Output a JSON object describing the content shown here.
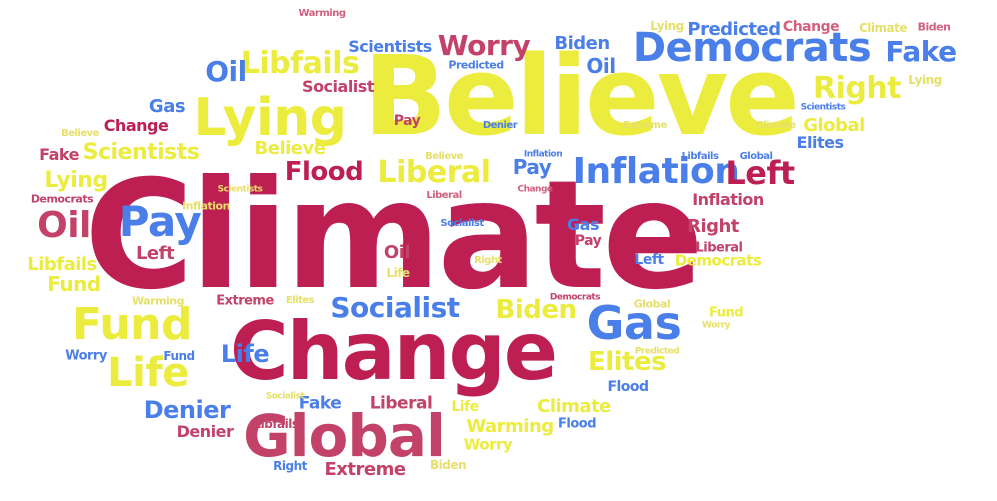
{
  "colors": {
    "yellow": "#ecec3f",
    "crimson": "#bd1f52",
    "rose": "#c2426a",
    "blue": "#4a7ee8"
  },
  "words": [
    "Climate",
    "Believe",
    "Change",
    "Global",
    "Democrats",
    "Lying",
    "Fund",
    "Gas",
    "Inflation",
    "Left",
    "Liberal",
    "Socialist",
    "Pay",
    "Oil",
    "Life",
    "Flood",
    "Libfails",
    "Worry",
    "Fake",
    "Right",
    "Biden",
    "Elites",
    "Denier",
    "Extreme",
    "Scientists",
    "Predicted",
    "Warming"
  ]
}
